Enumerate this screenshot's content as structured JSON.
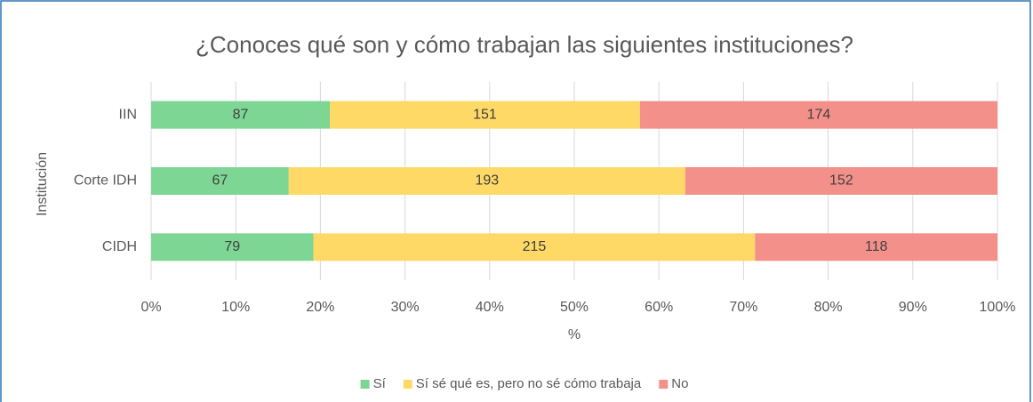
{
  "chart_data": {
    "type": "bar",
    "orientation": "horizontal",
    "stacked": "percent",
    "title": "¿Conoces qué son y cómo trabajan las siguientes instituciones?",
    "xlabel": "%",
    "ylabel": "Institución",
    "categories": [
      "IIN",
      "Corte IDH",
      "CIDH"
    ],
    "series": [
      {
        "name": "Sí",
        "color": "#7dd694",
        "values": [
          87,
          67,
          79
        ]
      },
      {
        "name": "Sí sé qué es, pero no sé cómo trabaja",
        "color": "#ffd966",
        "values": [
          151,
          193,
          215
        ]
      },
      {
        "name": "No",
        "color": "#f4908a",
        "values": [
          174,
          152,
          118
        ]
      }
    ],
    "xlim": [
      0,
      100
    ],
    "xticks": [
      {
        "value": 0,
        "label": "0%"
      },
      {
        "value": 10,
        "label": "10%"
      },
      {
        "value": 20,
        "label": "20%"
      },
      {
        "value": 30,
        "label": "30%"
      },
      {
        "value": 40,
        "label": "40%"
      },
      {
        "value": 50,
        "label": "50%"
      },
      {
        "value": 60,
        "label": "60%"
      },
      {
        "value": 70,
        "label": "70%"
      },
      {
        "value": 80,
        "label": "80%"
      },
      {
        "value": 90,
        "label": "90%"
      },
      {
        "value": 100,
        "label": "100%"
      }
    ],
    "grid": true,
    "legend": "bottom"
  }
}
